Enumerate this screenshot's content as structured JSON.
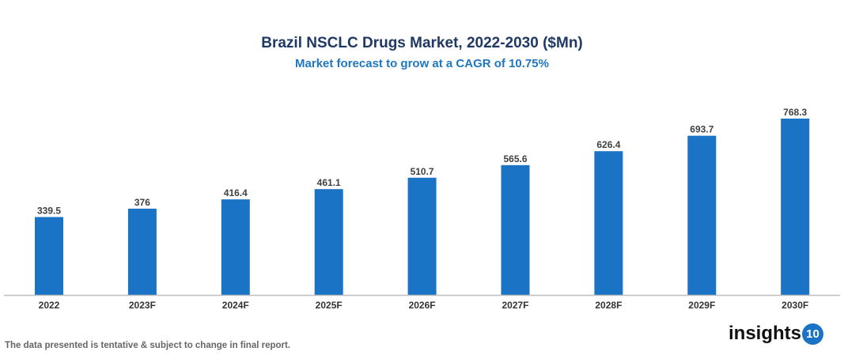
{
  "chart_data": {
    "type": "bar",
    "title": "Brazil NSCLC Drugs Market, 2022-2030 ($Mn)",
    "subtitle": "Market forecast to grow at a CAGR of 10.75%",
    "categories": [
      "2022",
      "2023F",
      "2024F",
      "2025F",
      "2026F",
      "2027F",
      "2028F",
      "2029F",
      "2030F"
    ],
    "values": [
      339.5,
      376,
      416.4,
      461.1,
      510.7,
      565.6,
      626.4,
      693.7,
      768.3
    ],
    "labels": [
      "339.5",
      "376",
      "416.4",
      "461.1",
      "510.7",
      "565.6",
      "626.4",
      "693.7",
      "768.3"
    ],
    "xlabel": "",
    "ylabel": "",
    "ylim": [
      0,
      800
    ],
    "grid": false,
    "legend": "none",
    "bar_color": "#1a73c4"
  },
  "footnote": "The data presented is tentative & subject to change in final report.",
  "logo": {
    "text": "insights",
    "badge": "10"
  }
}
